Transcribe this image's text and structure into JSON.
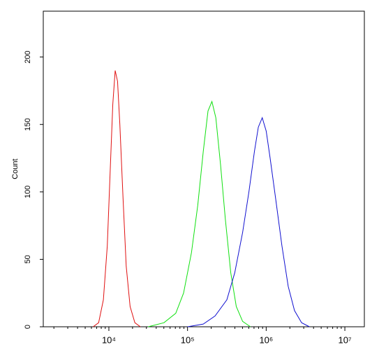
{
  "chart_data": {
    "type": "line",
    "log_x": true,
    "y_label": "Count",
    "xlim": [
      1466,
      17700000
    ],
    "ylim": [
      0,
      234
    ],
    "xticks": [
      {
        "value": 10000,
        "label": "10⁴"
      },
      {
        "value": 100000,
        "label": "10⁵"
      },
      {
        "value": 1000000,
        "label": "10⁶"
      },
      {
        "value": 10000000,
        "label": "10⁷"
      }
    ],
    "xminorticks": [
      2000,
      3000,
      4000,
      5000,
      6000,
      7000,
      8000,
      9000,
      20000,
      30000,
      40000,
      50000,
      60000,
      70000,
      80000,
      90000,
      200000,
      300000,
      400000,
      500000,
      600000,
      700000,
      800000,
      900000,
      2000000,
      3000000,
      4000000,
      5000000,
      6000000,
      7000000,
      8000000,
      9000000
    ],
    "yticks": [
      0,
      50,
      100,
      150,
      200
    ],
    "series": [
      {
        "color": "#e01010",
        "x": [
          6310,
          7413,
          8511,
          9550,
          10470,
          11220,
          12020,
          12880,
          13800,
          15140,
          16600,
          18620,
          21380,
          25120
        ],
        "values": [
          0,
          3,
          20,
          60,
          120,
          165,
          190,
          182,
          150,
          95,
          45,
          15,
          3,
          0
        ]
      },
      {
        "color": "#10e010",
        "x": [
          31620,
          50120,
          70790,
          89130,
          112200,
          134900,
          158500,
          182000,
          204200,
          229100,
          263000,
          302000,
          354800,
          416900,
          501200,
          631000
        ],
        "values": [
          0,
          3,
          10,
          25,
          55,
          90,
          130,
          160,
          167,
          155,
          120,
          80,
          40,
          15,
          4,
          0
        ]
      },
      {
        "color": "#1010d0",
        "x": [
          100000,
          158500,
          223900,
          316200,
          398100,
          501200,
          602600,
          707900,
          794300,
          891300,
          1000000,
          1122000,
          1318000,
          1585000,
          1905000,
          2291000,
          2818000,
          3548000
        ],
        "values": [
          0,
          2,
          8,
          20,
          40,
          70,
          100,
          130,
          148,
          155,
          145,
          125,
          95,
          60,
          30,
          12,
          3,
          0
        ]
      }
    ]
  }
}
